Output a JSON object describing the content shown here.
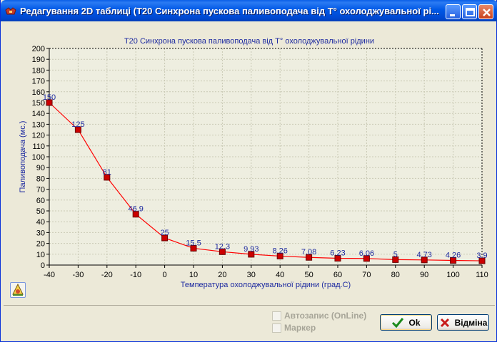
{
  "window": {
    "title": "Редагування 2D таблиці (T20 Синхрона пускова паливоподача від T° охолоджувальної рі..."
  },
  "chart": {
    "title": "T20 Синхрона пускова паливоподача від T° охолоджувальної рідини",
    "xlabel": "Температура охолоджувальної рідини (град.С)",
    "ylabel": "Паливоподача (мс.)"
  },
  "chart_data": {
    "type": "line",
    "title": "T20 Синхрона пускова паливоподача від T° охолоджувальної рідини",
    "xlabel": "Температура охолоджувальної рідини (град.С)",
    "ylabel": "Паливоподача (мс.)",
    "x": [
      -40,
      -30,
      -20,
      -10,
      0,
      10,
      20,
      30,
      40,
      50,
      60,
      70,
      80,
      90,
      100,
      110
    ],
    "y": [
      150,
      125,
      81,
      46.9,
      25,
      15.5,
      12.3,
      9.93,
      8.26,
      7.08,
      6.23,
      6.06,
      5,
      4.73,
      4.26,
      3.9
    ],
    "labels": [
      "150",
      "125",
      "81",
      "46.9",
      "25",
      "15.5",
      "12.3",
      "9.93",
      "8.26",
      "7.08",
      "6.23",
      "6.06",
      "5",
      "4.73",
      "4.26",
      "3.9"
    ],
    "xticks": [
      "-40",
      "-30",
      "-20",
      "-10",
      "0",
      "10",
      "20",
      "30",
      "40",
      "50",
      "60",
      "70",
      "80",
      "90",
      "100",
      "110"
    ],
    "yticks": [
      "0",
      "10",
      "20",
      "30",
      "40",
      "50",
      "60",
      "70",
      "80",
      "90",
      "100",
      "110",
      "120",
      "130",
      "140",
      "150",
      "160",
      "170",
      "180",
      "190",
      "200"
    ],
    "xlim": [
      -40,
      110
    ],
    "ylim": [
      0,
      200
    ],
    "grid": true,
    "line_color": "#ff0000",
    "marker_color": "#cc0000",
    "text_color": "#1d2aa0"
  },
  "controls": {
    "autosave_label": "Автозапис (OnLine)",
    "marker_label": "Маркер",
    "ok_label": "Ok",
    "cancel_label": "Відміна"
  }
}
